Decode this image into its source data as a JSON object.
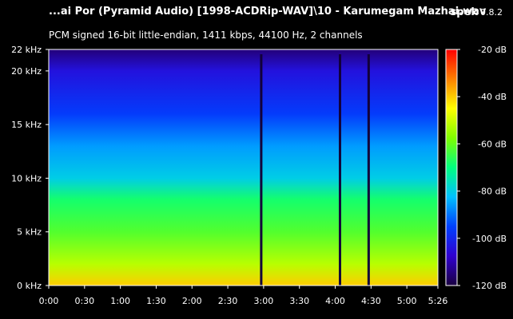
{
  "header": {
    "file_title": "...ai Por (Pyramid Audio) [1998-ACDRip-WAV]\\10 - Karumegam Mazhai.wav",
    "app_name": "spek",
    "app_version": "0.8.2",
    "stream_info": "PCM signed 16-bit little-endian, 1411 kbps, 44100 Hz, 2 channels"
  },
  "chart_data": {
    "type": "heatmap",
    "title": "",
    "x_axis": {
      "min_seconds": 0,
      "max_seconds": 326,
      "ticks": [
        {
          "value": 0,
          "label": "0:00"
        },
        {
          "value": 30,
          "label": "0:30"
        },
        {
          "value": 60,
          "label": "1:00"
        },
        {
          "value": 90,
          "label": "1:30"
        },
        {
          "value": 120,
          "label": "2:00"
        },
        {
          "value": 150,
          "label": "2:30"
        },
        {
          "value": 180,
          "label": "3:00"
        },
        {
          "value": 210,
          "label": "3:30"
        },
        {
          "value": 240,
          "label": "4:00"
        },
        {
          "value": 270,
          "label": "4:30"
        },
        {
          "value": 300,
          "label": "5:00"
        },
        {
          "value": 326,
          "label": "5:26"
        }
      ]
    },
    "y_axis": {
      "min_khz": 0,
      "max_khz": 22,
      "ticks": [
        {
          "value": 0,
          "label": "0 kHz"
        },
        {
          "value": 5,
          "label": "5 kHz"
        },
        {
          "value": 10,
          "label": "10 kHz"
        },
        {
          "value": 15,
          "label": "15 kHz"
        },
        {
          "value": 20,
          "label": "20 kHz"
        },
        {
          "value": 22,
          "label": "22 kHz"
        }
      ]
    },
    "colorbar": {
      "min_db": -120,
      "max_db": -20,
      "ticks": [
        {
          "value": -20,
          "label": "-20 dB"
        },
        {
          "value": -40,
          "label": "-40 dB"
        },
        {
          "value": -60,
          "label": "-60 dB"
        },
        {
          "value": -80,
          "label": "-80 dB"
        },
        {
          "value": -100,
          "label": "-100 dB"
        },
        {
          "value": -120,
          "label": "-120 dB"
        }
      ],
      "colors": [
        "#ff0000",
        "#ff8000",
        "#ffff00",
        "#80ff00",
        "#00ff80",
        "#00c0ff",
        "#0040ff",
        "#3000d0",
        "#1a0040"
      ]
    },
    "spectrum_profile_db": [
      {
        "khz": 0,
        "db": -40
      },
      {
        "khz": 2,
        "db": -52
      },
      {
        "khz": 5,
        "db": -62
      },
      {
        "khz": 8,
        "db": -68
      },
      {
        "khz": 10,
        "db": -80
      },
      {
        "khz": 13,
        "db": -86
      },
      {
        "khz": 16,
        "db": -96
      },
      {
        "khz": 20,
        "db": -104
      },
      {
        "khz": 22,
        "db": -115
      }
    ],
    "silent_moments_seconds": [
      178,
      244,
      268
    ]
  }
}
